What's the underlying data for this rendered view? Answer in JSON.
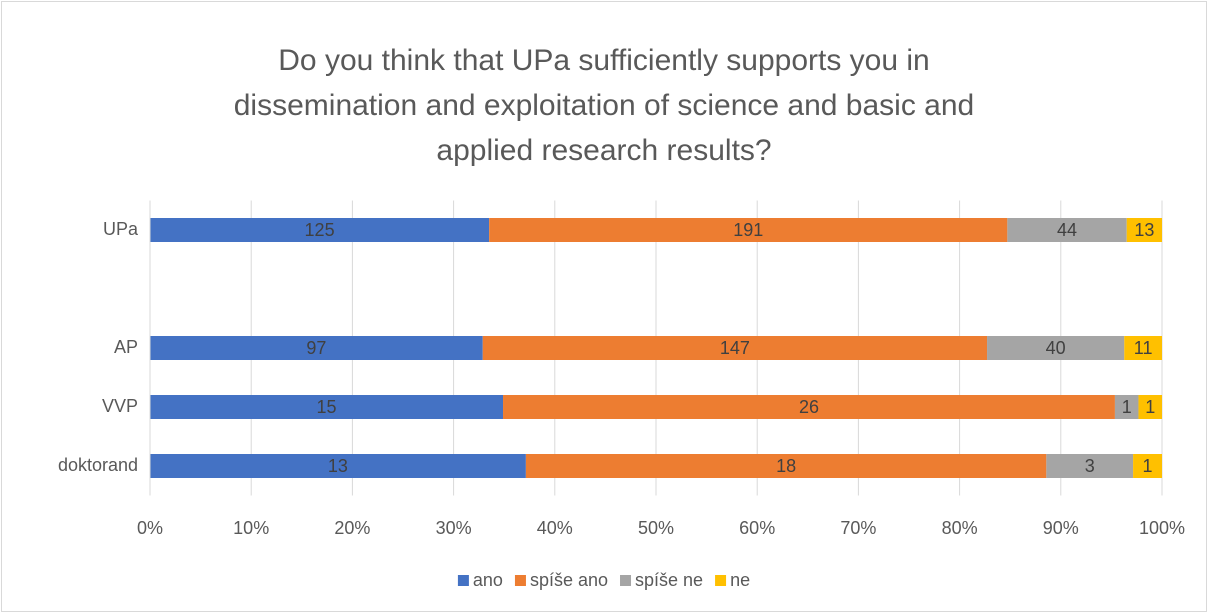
{
  "chart_data": {
    "type": "bar",
    "orientation": "horizontal",
    "stacked": "percent",
    "title": "Do you think that UPa sufficiently supports you in dissemination and exploitation of science and basic and applied research results?",
    "categories": [
      "UPa",
      null,
      "AP",
      "VVP",
      "doktorand"
    ],
    "series": [
      {
        "name": "ano",
        "color": "#4472c4",
        "values": [
          125,
          null,
          97,
          15,
          13
        ]
      },
      {
        "name": "spíše ano",
        "color": "#ed7d31",
        "values": [
          191,
          null,
          147,
          26,
          18
        ]
      },
      {
        "name": "spíše ne",
        "color": "#a5a5a5",
        "values": [
          44,
          null,
          40,
          1,
          3
        ]
      },
      {
        "name": "ne",
        "color": "#ffc000",
        "values": [
          13,
          null,
          11,
          1,
          1
        ]
      }
    ],
    "xlim": [
      0,
      100
    ],
    "xticks": [
      {
        "value": 0,
        "label": "0%"
      },
      {
        "value": 10,
        "label": "10%"
      },
      {
        "value": 20,
        "label": "20%"
      },
      {
        "value": 30,
        "label": "30%"
      },
      {
        "value": 40,
        "label": "40%"
      },
      {
        "value": 50,
        "label": "50%"
      },
      {
        "value": 60,
        "label": "60%"
      },
      {
        "value": 70,
        "label": "70%"
      },
      {
        "value": 80,
        "label": "80%"
      },
      {
        "value": 90,
        "label": "90%"
      },
      {
        "value": 100,
        "label": "100%"
      }
    ],
    "grid": true,
    "legend": "bottom"
  }
}
